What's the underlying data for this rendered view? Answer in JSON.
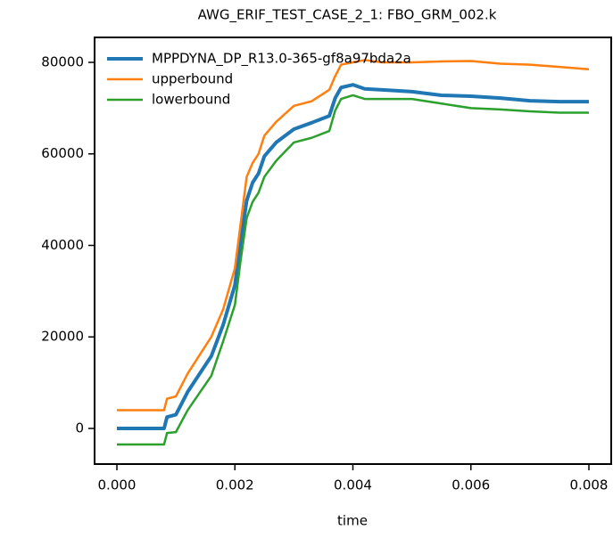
{
  "chart_data": {
    "type": "line",
    "title": "AWG_ERIF_TEST_CASE_2_1: FBO_GRM_002.k",
    "x_label": "time",
    "x": [
      0,
      0.0008,
      0.00085,
      0.001,
      0.0012,
      0.0016,
      0.0018,
      0.002,
      0.0021,
      0.0022,
      0.0023,
      0.0024,
      0.0025,
      0.0027,
      0.003,
      0.0033,
      0.0036,
      0.0037,
      0.0038,
      0.004,
      0.0042,
      0.0045,
      0.005,
      0.0055,
      0.006,
      0.0065,
      0.007,
      0.0075,
      0.008
    ],
    "series": [
      {
        "name": "MPPDYNA_DP_R13.0-365-gf8a97bda2a",
        "color": "#1f77b4",
        "width": 4,
        "values": [
          0,
          0,
          2500,
          3000,
          8000,
          15800,
          22600,
          31300,
          41000,
          49800,
          53700,
          55700,
          59500,
          62500,
          65400,
          66800,
          68300,
          72200,
          74500,
          75100,
          74200,
          74000,
          73600,
          72800,
          72600,
          72200,
          71600,
          71400,
          71400
        ]
      },
      {
        "name": "upperbound",
        "color": "#ff7f0e",
        "width": 2.5,
        "values": [
          4000,
          4000,
          6500,
          7000,
          12000,
          20000,
          26000,
          35000,
          45000,
          55000,
          58000,
          60000,
          64000,
          67000,
          70500,
          71500,
          74000,
          77000,
          79500,
          80000,
          80500,
          80000,
          80000,
          80200,
          80300,
          79700,
          79500,
          79000,
          78500
        ]
      },
      {
        "name": "lowerbound",
        "color": "#2ca02c",
        "width": 2.5,
        "values": [
          -3500,
          -3500,
          -1000,
          -800,
          4000,
          11500,
          19000,
          27000,
          37000,
          46000,
          49500,
          51500,
          55000,
          58500,
          62500,
          63500,
          65000,
          69500,
          72000,
          72800,
          72000,
          72000,
          72000,
          71000,
          70000,
          69700,
          69300,
          69000,
          69000
        ]
      }
    ],
    "xlim": [
      -0.000378,
      0.008378
    ],
    "ylim": [
      -7786,
      85450
    ],
    "xticks": [
      {
        "value": 0,
        "label": "0.000"
      },
      {
        "value": 0.002,
        "label": "0.002"
      },
      {
        "value": 0.004,
        "label": "0.004"
      },
      {
        "value": 0.006,
        "label": "0.006"
      },
      {
        "value": 0.008,
        "label": "0.008"
      }
    ],
    "yticks": [
      0,
      20000,
      40000,
      60000,
      80000
    ],
    "legend": "upper-left"
  }
}
